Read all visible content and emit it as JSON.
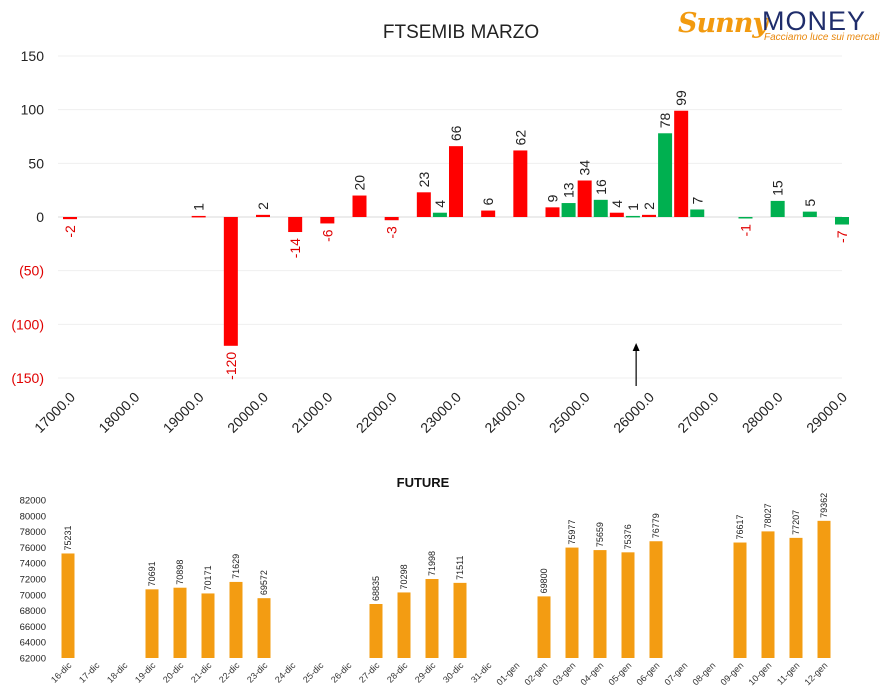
{
  "logo": {
    "brand_part1": "Sunny",
    "brand_part2": "MONEY",
    "tagline": "Facciamo luce sui mercati",
    "color_sunny": "#f29a0f",
    "color_money": "#1f2d6b"
  },
  "chart_data": [
    {
      "type": "bar",
      "title": "FTSEMIB MARZO",
      "ylim": [
        -150,
        150
      ],
      "y_ticks": [
        150,
        100,
        50,
        0,
        -50,
        -100,
        -150
      ],
      "y_tick_labels": [
        "150",
        "100",
        "50",
        "0",
        "(50)",
        "(100)",
        "(150)"
      ],
      "x_tick_labels": [
        "17000.0",
        "18000.0",
        "19000.0",
        "20000.0",
        "21000.0",
        "22000.0",
        "23000.0",
        "24000.0",
        "25000.0",
        "26000.0",
        "27000.0",
        "28000.0",
        "29000.0"
      ],
      "grid": true,
      "legend": "none",
      "colors": {
        "red": "#ff0000",
        "green": "#00b050",
        "negative_label": "#e00000",
        "positive_label": "#222222"
      },
      "bars": [
        {
          "strike": 17000,
          "value": -2,
          "color": "red"
        },
        {
          "strike": 19000,
          "value": 1,
          "color": "red"
        },
        {
          "strike": 19500,
          "value": -120,
          "color": "red"
        },
        {
          "strike": 20000,
          "value": 2,
          "color": "red"
        },
        {
          "strike": 20500,
          "value": -14,
          "color": "red"
        },
        {
          "strike": 21000,
          "value": -6,
          "color": "red"
        },
        {
          "strike": 21500,
          "value": 20,
          "color": "red"
        },
        {
          "strike": 22000,
          "value": -3,
          "color": "red"
        },
        {
          "strike": 22500,
          "value": 23,
          "color": "red"
        },
        {
          "strike": 22750,
          "value": 4,
          "color": "green"
        },
        {
          "strike": 23000,
          "value": 66,
          "color": "red"
        },
        {
          "strike": 23500,
          "value": 6,
          "color": "red"
        },
        {
          "strike": 24000,
          "value": 62,
          "color": "red"
        },
        {
          "strike": 24500,
          "value": 9,
          "color": "red"
        },
        {
          "strike": 24750,
          "value": 13,
          "color": "green"
        },
        {
          "strike": 25000,
          "value": 34,
          "color": "red"
        },
        {
          "strike": 25250,
          "value": 16,
          "color": "green"
        },
        {
          "strike": 25500,
          "value": 4,
          "color": "red"
        },
        {
          "strike": 25750,
          "value": 1,
          "color": "green"
        },
        {
          "strike": 26000,
          "value": 2,
          "color": "red"
        },
        {
          "strike": 26250,
          "value": 78,
          "color": "green"
        },
        {
          "strike": 26500,
          "value": 99,
          "color": "red"
        },
        {
          "strike": 26750,
          "value": 7,
          "color": "green"
        },
        {
          "strike": 27500,
          "value": -1,
          "color": "green"
        },
        {
          "strike": 28000,
          "value": 15,
          "color": "green"
        },
        {
          "strike": 28500,
          "value": 5,
          "color": "green"
        },
        {
          "strike": 29000,
          "value": -7,
          "color": "green"
        }
      ],
      "marker": {
        "type": "arrow-up",
        "strike": 25800
      }
    },
    {
      "type": "bar",
      "title": "FUTURE",
      "ylim": [
        62000,
        82000
      ],
      "y_ticks": [
        62000,
        64000,
        66000,
        68000,
        70000,
        72000,
        74000,
        76000,
        78000,
        80000,
        82000
      ],
      "y_tick_labels": [
        "62000",
        "64000",
        "66000",
        "68000",
        "70000",
        "72000",
        "74000",
        "76000",
        "78000",
        "80000",
        "82000"
      ],
      "categories": [
        "16-dic",
        "17-dic",
        "18-dic",
        "19-dic",
        "20-dic",
        "21-dic",
        "22-dic",
        "23-dic",
        "24-dic",
        "25-dic",
        "26-dic",
        "27-dic",
        "28-dic",
        "29-dic",
        "30-dic",
        "31-dic",
        "01-gen",
        "02-gen",
        "03-gen",
        "04-gen",
        "05-gen",
        "06-gen",
        "07-gen",
        "08-gen",
        "09-gen",
        "10-gen",
        "11-gen",
        "12-gen"
      ],
      "values": [
        75231,
        null,
        null,
        70691,
        70898,
        70171,
        71629,
        69572,
        null,
        null,
        null,
        68835,
        70298,
        71998,
        71511,
        null,
        null,
        69800,
        75977,
        75659,
        75376,
        76779,
        null,
        null,
        76617,
        78027,
        77207,
        79362
      ],
      "color": "#f39c12",
      "grid": false,
      "legend": "none"
    }
  ]
}
